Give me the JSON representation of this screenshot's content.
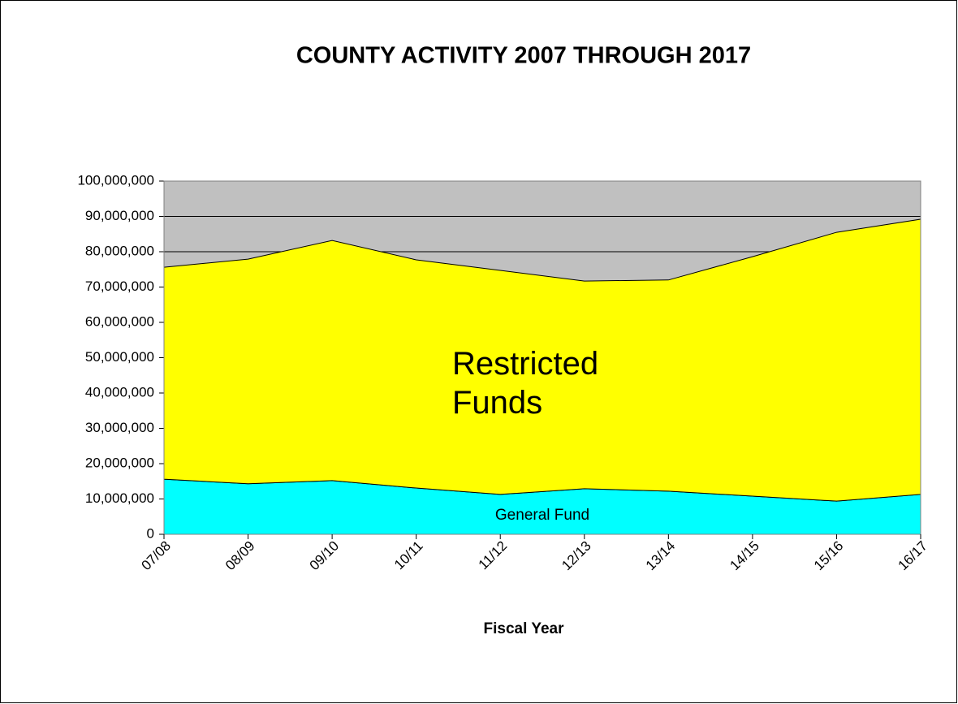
{
  "chart_data": {
    "type": "stacked_area",
    "title": "COUNTY ACTIVITY 2007 THROUGH 2017",
    "x_label": "Fiscal Year",
    "categories": [
      "07/08",
      "08/09",
      "09/10",
      "10/11",
      "11/12",
      "12/13",
      "13/14",
      "14/15",
      "15/16",
      "16/17"
    ],
    "series": [
      {
        "name": "General Fund",
        "color": "#00ffff",
        "values": [
          15600000,
          14300000,
          15200000,
          13100000,
          11300000,
          12900000,
          12200000,
          10800000,
          9400000,
          11300000
        ]
      },
      {
        "name": "Restricted Funds",
        "color": "#ffff00",
        "values": [
          60000000,
          63600000,
          68000000,
          64600000,
          63400000,
          58800000,
          59800000,
          67800000,
          76100000,
          77900000
        ]
      }
    ],
    "ylim": [
      0,
      100000000
    ],
    "yticks": [
      0,
      {
        "value": 10000000,
        "label": "10,000,000"
      },
      {
        "value": 20000000,
        "label": "20,000,000"
      },
      {
        "value": 30000000,
        "label": "30,000,000"
      },
      {
        "value": 40000000,
        "label": "40,000,000"
      },
      {
        "value": 50000000,
        "label": "50,000,000"
      },
      {
        "value": 60000000,
        "label": "60,000,000"
      },
      {
        "value": 70000000,
        "label": "70,000,000"
      },
      {
        "value": 80000000,
        "label": "80,000,000"
      },
      {
        "value": 90000000,
        "label": "90,000,000"
      },
      {
        "value": 100000000,
        "label": "100,000,000"
      }
    ],
    "grid": true,
    "plot_background": "#c0c0c0"
  }
}
